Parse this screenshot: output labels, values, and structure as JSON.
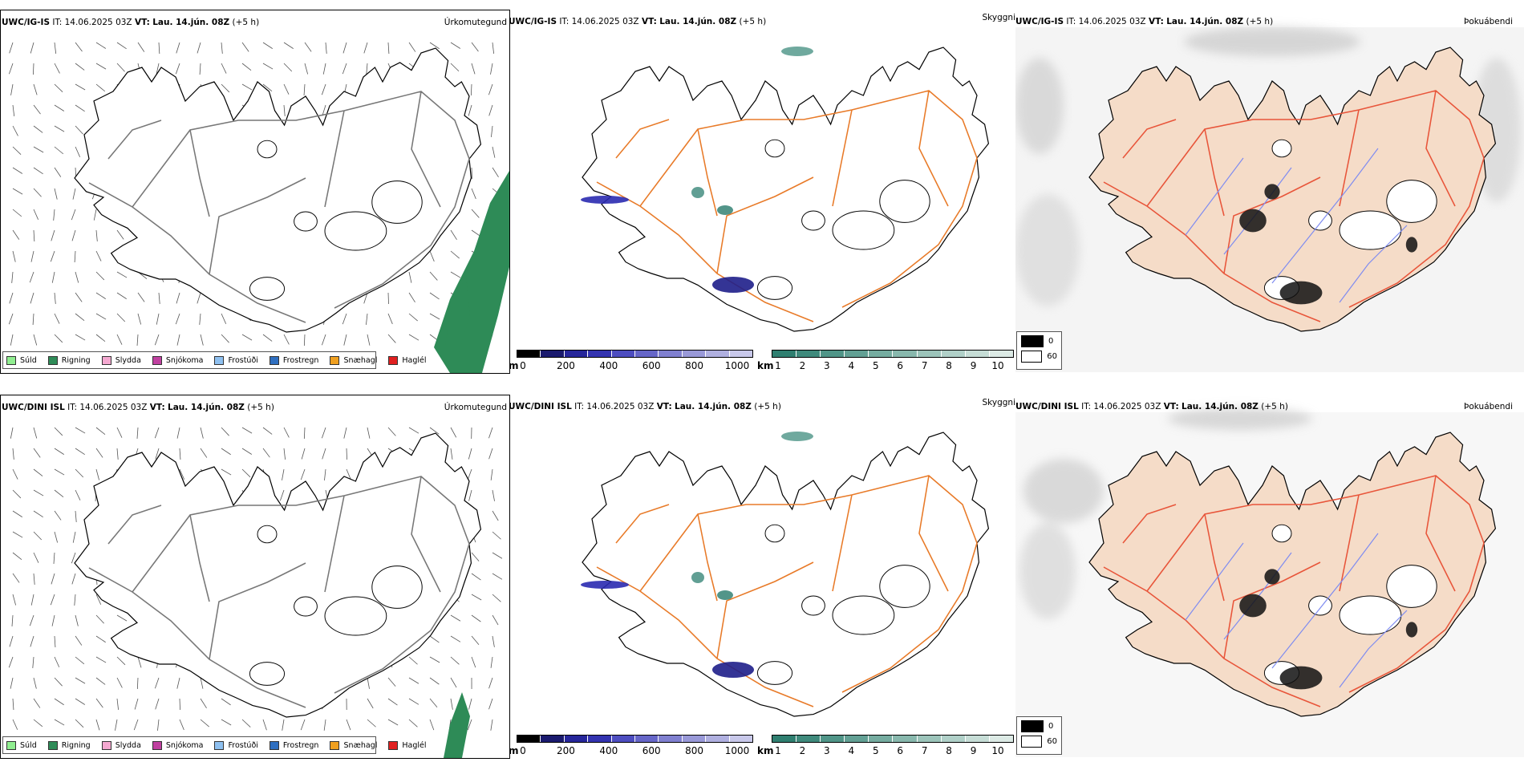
{
  "rows": [
    {
      "model": "UWC/IG-IS",
      "init_label": "IT:",
      "init_time": "14.06.2025 03Z",
      "valid_label": "VT:",
      "valid_time": "Lau. 14.jún. 08Z",
      "lead": "(+5 h)",
      "title_precip_type": "Úrkomutegund",
      "title_visibility": "Skyggni",
      "title_fog": "Þokuábendi"
    },
    {
      "model": "UWC/DINI ISL",
      "init_label": "IT:",
      "init_time": "14.06.2025 03Z",
      "valid_label": "VT:",
      "valid_time": "Lau. 14.jún. 08Z",
      "lead": "(+5 h)",
      "title_precip_type": "Úrkomutegund",
      "title_visibility": "Skyggni",
      "title_fog": "Þokuábendi"
    }
  ],
  "precip_legend": [
    {
      "label": "Súld",
      "color": "#90ee90"
    },
    {
      "label": "Rigning",
      "color": "#2e8b57"
    },
    {
      "label": "Slydda",
      "color": "#f4a8d0"
    },
    {
      "label": "Snjókoma",
      "color": "#c040a0"
    },
    {
      "label": "Frostúði",
      "color": "#8ec0f0"
    },
    {
      "label": "Frostregn",
      "color": "#2f6fc0"
    },
    {
      "label": "Snæhagl",
      "color": "#f0a020"
    },
    {
      "label": "Haglél",
      "color": "#e02020"
    }
  ],
  "ceiling_scale": {
    "unit": "m",
    "ticks": [
      "0",
      "200",
      "400",
      "600",
      "800",
      "1000"
    ],
    "colors": [
      "#000000",
      "#1a1a6e",
      "#26269a",
      "#3333b0",
      "#4d4dc0",
      "#6666c8",
      "#8080d0",
      "#9999d8",
      "#b0b0e0",
      "#c8c8ea"
    ]
  },
  "visibility_scale": {
    "unit": "km",
    "ticks": [
      "1",
      "2",
      "3",
      "4",
      "5",
      "6",
      "7",
      "8",
      "9",
      "10"
    ],
    "colors": [
      "#2f7f70",
      "#3f8a7c",
      "#509588",
      "#62a094",
      "#75aca0",
      "#88b8ad",
      "#9cc4ba",
      "#b0d0c8",
      "#c6ddd6",
      "#dceae5"
    ]
  },
  "fog_key": [
    {
      "label": "0",
      "color": "#000000"
    },
    {
      "label": "60",
      "color": "#ffffff"
    }
  ],
  "colors": {
    "land_fog": "#f5dcc8",
    "roads": "#e87a28",
    "roads_fog": "#e8553a",
    "rivers": "#7f8cf0",
    "rain": "#2e8b57"
  }
}
